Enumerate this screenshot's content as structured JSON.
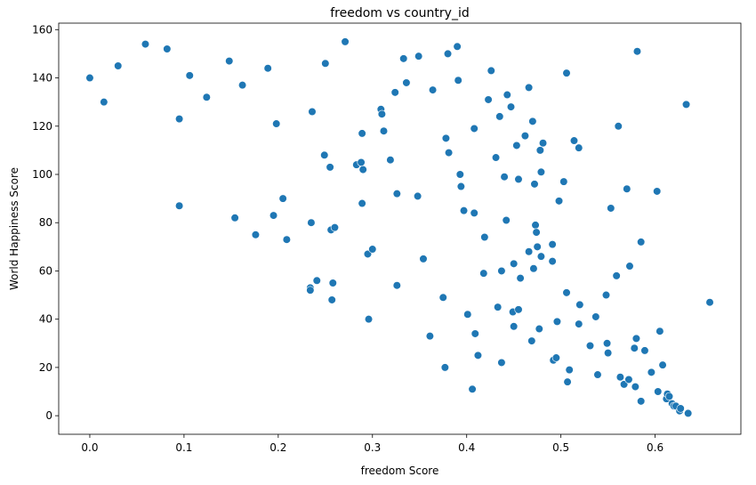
{
  "chart_data": {
    "type": "scatter",
    "title": "freedom vs country_id",
    "xlabel": "freedom Score",
    "ylabel": "World Happiness Score",
    "xlim": [
      -0.033,
      0.691
    ],
    "ylim": [
      -7.7,
      162.7
    ],
    "xticks": [
      "0.0",
      "0.1",
      "0.2",
      "0.3",
      "0.4",
      "0.5",
      "0.6"
    ],
    "yticks": [
      "0",
      "20",
      "40",
      "60",
      "80",
      "100",
      "120",
      "140",
      "160"
    ],
    "grid": false,
    "legend": "none",
    "marker_color": "#1f77b4",
    "points": [
      [
        0.0,
        140
      ],
      [
        0.015,
        130
      ],
      [
        0.03,
        145
      ],
      [
        0.059,
        154
      ],
      [
        0.082,
        152
      ],
      [
        0.095,
        123
      ],
      [
        0.095,
        87
      ],
      [
        0.106,
        141
      ],
      [
        0.124,
        132
      ],
      [
        0.148,
        147
      ],
      [
        0.154,
        82
      ],
      [
        0.162,
        137
      ],
      [
        0.176,
        75
      ],
      [
        0.189,
        144
      ],
      [
        0.195,
        83
      ],
      [
        0.198,
        121
      ],
      [
        0.205,
        90
      ],
      [
        0.209,
        73
      ],
      [
        0.234,
        53
      ],
      [
        0.234,
        52
      ],
      [
        0.235,
        80
      ],
      [
        0.236,
        126
      ],
      [
        0.241,
        56
      ],
      [
        0.249,
        108
      ],
      [
        0.25,
        146
      ],
      [
        0.255,
        103
      ],
      [
        0.256,
        77
      ],
      [
        0.257,
        48
      ],
      [
        0.258,
        55
      ],
      [
        0.26,
        78
      ],
      [
        0.271,
        155
      ],
      [
        0.283,
        104
      ],
      [
        0.288,
        105
      ],
      [
        0.289,
        88
      ],
      [
        0.289,
        117
      ],
      [
        0.29,
        102
      ],
      [
        0.295,
        67
      ],
      [
        0.296,
        40
      ],
      [
        0.3,
        69
      ],
      [
        0.309,
        127
      ],
      [
        0.31,
        125
      ],
      [
        0.312,
        118
      ],
      [
        0.319,
        106
      ],
      [
        0.324,
        134
      ],
      [
        0.326,
        92
      ],
      [
        0.326,
        54
      ],
      [
        0.333,
        148
      ],
      [
        0.336,
        138
      ],
      [
        0.348,
        91
      ],
      [
        0.349,
        149
      ],
      [
        0.354,
        65
      ],
      [
        0.361,
        33
      ],
      [
        0.364,
        135
      ],
      [
        0.375,
        49
      ],
      [
        0.377,
        20
      ],
      [
        0.378,
        115
      ],
      [
        0.38,
        150
      ],
      [
        0.381,
        109
      ],
      [
        0.39,
        153
      ],
      [
        0.391,
        139
      ],
      [
        0.393,
        100
      ],
      [
        0.394,
        95
      ],
      [
        0.397,
        85
      ],
      [
        0.401,
        42
      ],
      [
        0.406,
        11
      ],
      [
        0.408,
        84
      ],
      [
        0.408,
        119
      ],
      [
        0.409,
        34
      ],
      [
        0.412,
        25
      ],
      [
        0.418,
        59
      ],
      [
        0.419,
        74
      ],
      [
        0.423,
        131
      ],
      [
        0.426,
        143
      ],
      [
        0.431,
        107
      ],
      [
        0.433,
        45
      ],
      [
        0.435,
        124
      ],
      [
        0.437,
        60
      ],
      [
        0.437,
        22
      ],
      [
        0.44,
        99
      ],
      [
        0.442,
        81
      ],
      [
        0.443,
        133
      ],
      [
        0.447,
        128
      ],
      [
        0.449,
        43
      ],
      [
        0.45,
        63
      ],
      [
        0.45,
        37
      ],
      [
        0.453,
        112
      ],
      [
        0.455,
        98
      ],
      [
        0.455,
        44
      ],
      [
        0.457,
        57
      ],
      [
        0.462,
        116
      ],
      [
        0.466,
        68
      ],
      [
        0.466,
        136
      ],
      [
        0.469,
        31
      ],
      [
        0.47,
        122
      ],
      [
        0.471,
        61
      ],
      [
        0.472,
        96
      ],
      [
        0.473,
        79
      ],
      [
        0.474,
        76
      ],
      [
        0.475,
        70
      ],
      [
        0.477,
        36
      ],
      [
        0.478,
        110
      ],
      [
        0.479,
        101
      ],
      [
        0.479,
        66
      ],
      [
        0.481,
        113
      ],
      [
        0.491,
        71
      ],
      [
        0.491,
        64
      ],
      [
        0.492,
        23
      ],
      [
        0.495,
        24
      ],
      [
        0.496,
        39
      ],
      [
        0.498,
        89
      ],
      [
        0.503,
        97
      ],
      [
        0.506,
        142
      ],
      [
        0.506,
        51
      ],
      [
        0.507,
        14
      ],
      [
        0.509,
        19
      ],
      [
        0.514,
        114
      ],
      [
        0.519,
        111
      ],
      [
        0.519,
        38
      ],
      [
        0.52,
        46
      ],
      [
        0.531,
        29
      ],
      [
        0.537,
        41
      ],
      [
        0.539,
        17
      ],
      [
        0.548,
        50
      ],
      [
        0.549,
        30
      ],
      [
        0.55,
        26
      ],
      [
        0.553,
        86
      ],
      [
        0.559,
        58
      ],
      [
        0.561,
        120
      ],
      [
        0.563,
        16
      ],
      [
        0.567,
        13
      ],
      [
        0.57,
        94
      ],
      [
        0.572,
        15
      ],
      [
        0.573,
        62
      ],
      [
        0.578,
        28
      ],
      [
        0.579,
        12
      ],
      [
        0.58,
        32
      ],
      [
        0.581,
        151
      ],
      [
        0.585,
        72
      ],
      [
        0.585,
        6
      ],
      [
        0.589,
        27
      ],
      [
        0.596,
        18
      ],
      [
        0.602,
        93
      ],
      [
        0.603,
        10
      ],
      [
        0.605,
        35
      ],
      [
        0.608,
        21
      ],
      [
        0.612,
        7
      ],
      [
        0.613,
        9
      ],
      [
        0.615,
        8
      ],
      [
        0.618,
        5
      ],
      [
        0.62,
        4
      ],
      [
        0.622,
        4
      ],
      [
        0.626,
        2
      ],
      [
        0.627,
        3
      ],
      [
        0.633,
        129
      ],
      [
        0.635,
        1
      ],
      [
        0.658,
        47
      ]
    ]
  }
}
